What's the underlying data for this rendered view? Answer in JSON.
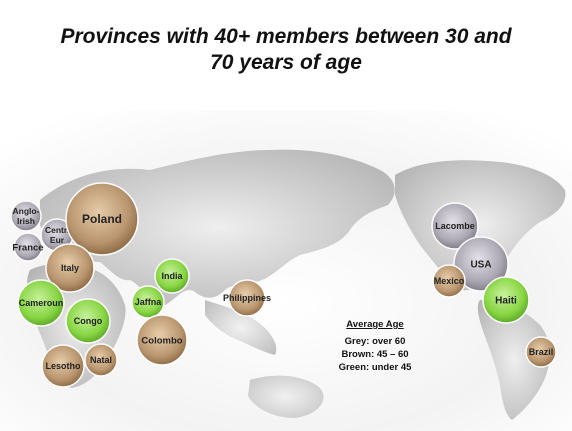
{
  "title_lines": [
    "Provinces with 40+ members between 30 and",
    "70 years of age"
  ],
  "colors": {
    "grey": "#9e9aa6",
    "brown": "#b08a62",
    "green": "#7fcf38",
    "map_land": "#c9c9c9",
    "map_bg": "#f2f2f2"
  },
  "legend": {
    "title": "Average Age",
    "items": [
      "Grey: over 60",
      "Brown: 45 – 60",
      "Green: under 45"
    ]
  },
  "provinces": [
    {
      "lines": [
        "Anglo-",
        "Irish"
      ],
      "category": "grey"
    },
    {
      "lines": [
        "Centr.",
        "Eur"
      ],
      "category": "grey"
    },
    {
      "lines": [
        "France"
      ],
      "category": "grey"
    },
    {
      "lines": [
        "Poland"
      ],
      "category": "brown"
    },
    {
      "lines": [
        "Italy"
      ],
      "category": "brown"
    },
    {
      "lines": [
        "Cameroun"
      ],
      "category": "green"
    },
    {
      "lines": [
        "Congo"
      ],
      "category": "green"
    },
    {
      "lines": [
        "Lesotho"
      ],
      "category": "brown"
    },
    {
      "lines": [
        "Natal"
      ],
      "category": "brown"
    },
    {
      "lines": [
        "India"
      ],
      "category": "green"
    },
    {
      "lines": [
        "Jaffna"
      ],
      "category": "green"
    },
    {
      "lines": [
        "Colombo"
      ],
      "category": "brown"
    },
    {
      "lines": [
        "Philippines"
      ],
      "category": "brown"
    },
    {
      "lines": [
        "Lacombe"
      ],
      "category": "grey"
    },
    {
      "lines": [
        "USA"
      ],
      "category": "grey"
    },
    {
      "lines": [
        "Mexico"
      ],
      "category": "brown"
    },
    {
      "lines": [
        "Haiti"
      ],
      "category": "green"
    },
    {
      "lines": [
        "Brazil"
      ],
      "category": "brown"
    }
  ]
}
